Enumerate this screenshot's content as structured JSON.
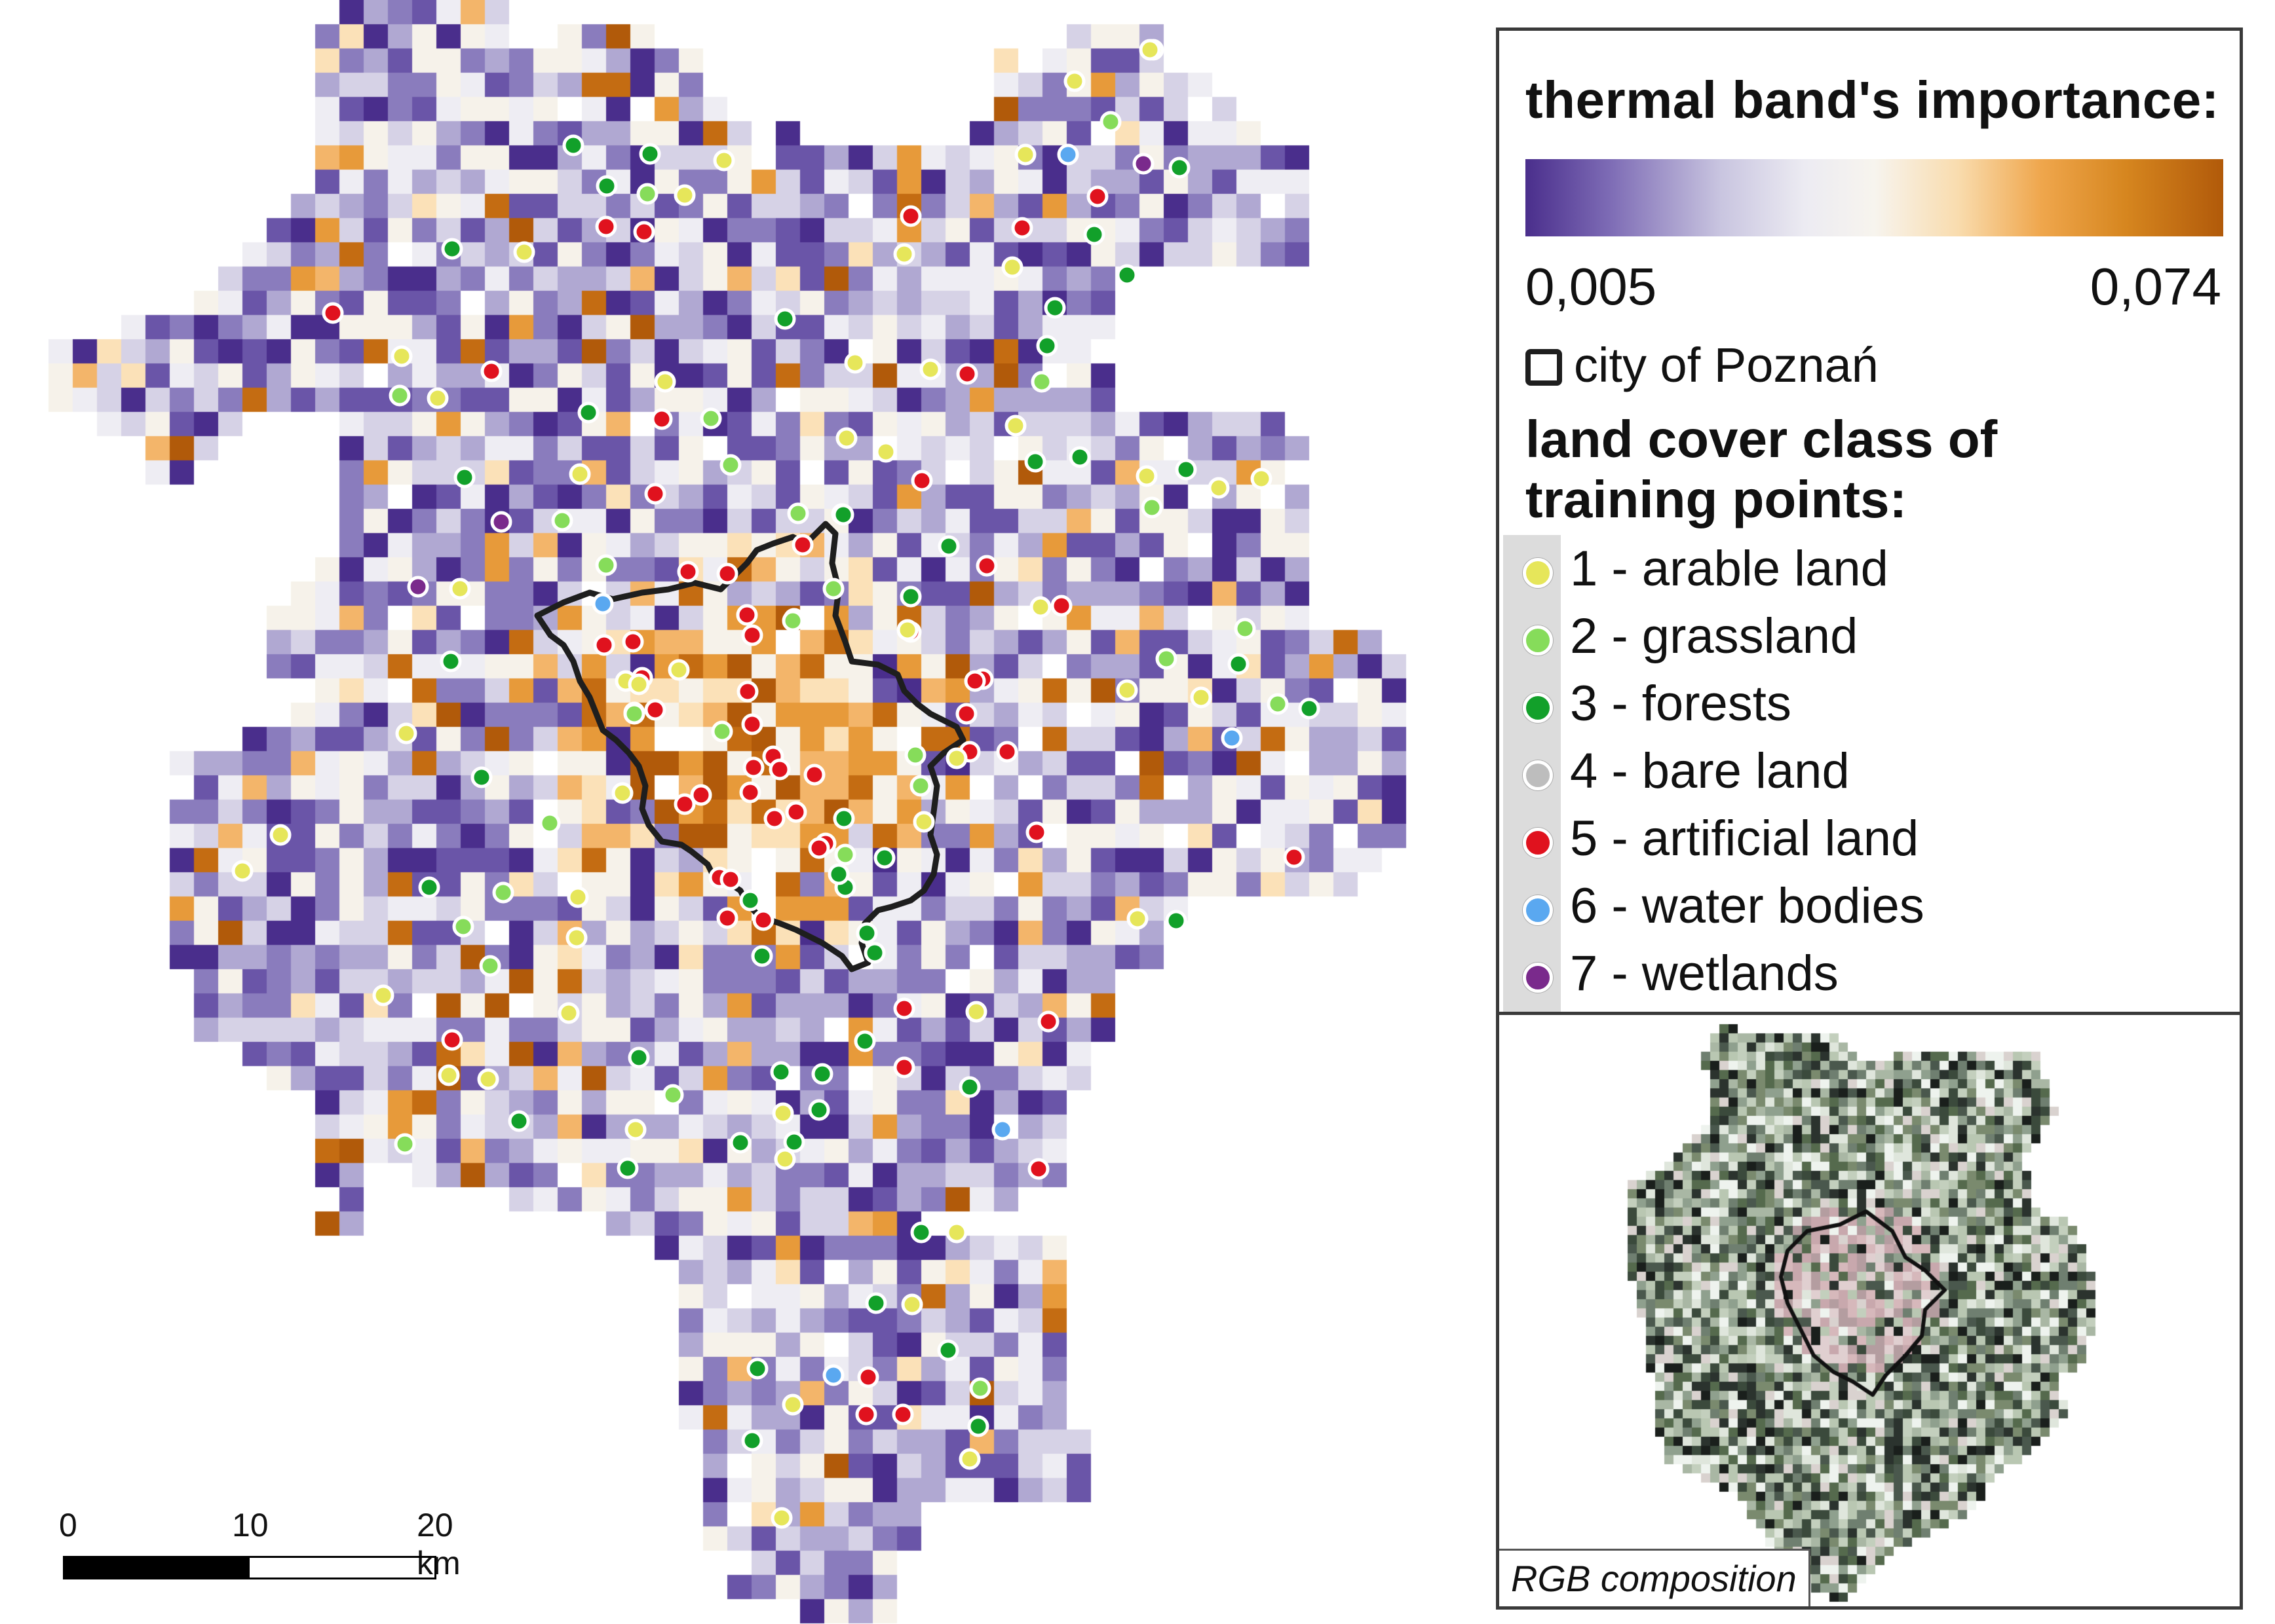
{
  "legend": {
    "title": "thermal band's importance:",
    "range_min": "0,005",
    "range_max": "0,074",
    "city_label": "city of Poznań",
    "landcover_title_line1": "land cover class of",
    "landcover_title_line2": "training points:",
    "classes": [
      {
        "label": "1 - arable land",
        "color": "#e6e65a"
      },
      {
        "label": "2 - grassland",
        "color": "#86dc5a"
      },
      {
        "label": "3 - forests",
        "color": "#12a02a"
      },
      {
        "label": "4 - bare land",
        "color": "#bdbdbd"
      },
      {
        "label": "5 - artificial land",
        "color": "#e0121e"
      },
      {
        "label": "6 - water bodies",
        "color": "#5aa8f0"
      },
      {
        "label": "7 - wetlands",
        "color": "#7a2a8c"
      }
    ]
  },
  "inset": {
    "label": "RGB composition"
  },
  "scalebar": {
    "labels": [
      "0",
      "10",
      "20 km"
    ]
  },
  "colors": {
    "palette": [
      "#4a2e8c",
      "#6a55a8",
      "#8a7cbd",
      "#b0a8d2",
      "#d6d2e6",
      "#eeedf3",
      "#f6f2ea",
      "#fbe1b8",
      "#f3b56a",
      "#e79a3a",
      "#c46c12",
      "#b15a0a"
    ],
    "city_outline": "#1e1e1e"
  }
}
